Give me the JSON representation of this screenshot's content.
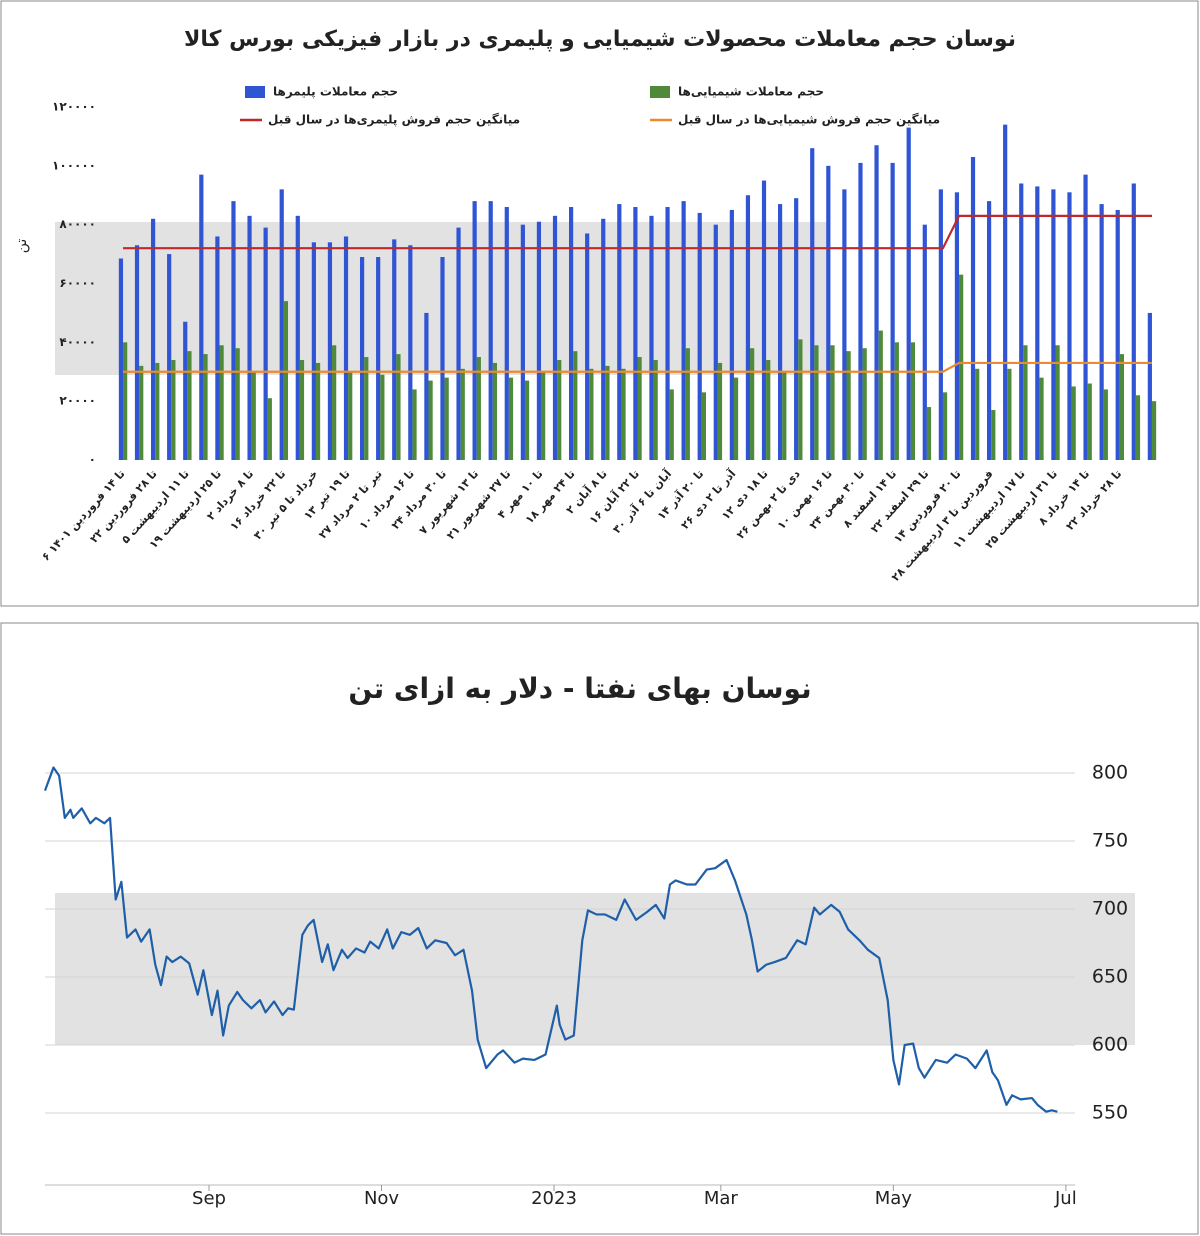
{
  "chart_data": [
    {
      "type": "bar",
      "title": "نوسان حجم معاملات محصولات شیمیایی و پلیمری در بازار فیزیکی بورس کالا",
      "y_label": "تن",
      "legend": "top",
      "grid": false,
      "categories": [
        "۶ تا ۱۴ فروردین ۱۴۰۱",
        null,
        "۲۲ تا ۲۸ فروردین",
        null,
        "۵ تا ۱۱ اردیبهشت",
        null,
        "۱۹ تا ۲۵ اردیبهشت",
        null,
        "۲ تا ۸ خرداد",
        null,
        "۱۶ تا ۲۲ خرداد",
        null,
        "۳۰ خرداد تا ۵ تیر",
        null,
        "۱۳ تا ۱۹ تیر",
        null,
        "۲۷ تیر تا ۲ مرداد",
        null,
        "۱۰ تا ۱۶ مرداد",
        null,
        "۲۴ تا ۳۰ مرداد",
        null,
        "۷ تا ۱۳ شهریور",
        null,
        "۲۱ تا ۲۷ شهریور",
        null,
        "۴ تا ۱۰ مهر",
        null,
        "۱۸ تا ۲۴ مهر",
        null,
        "۲ تا ۸ آبان",
        null,
        "۱۶ تا ۲۲ آبان",
        null,
        "۳۰ آبان تا ۶ آذر",
        null,
        "۱۴ تا ۲۰ آذر",
        null,
        "۲۶ آذر تا ۲ دی",
        null,
        "۱۲ تا ۱۸ دی",
        null,
        "۲۶ دی تا ۲ بهمن",
        null,
        "۱۰ تا ۱۶ بهمن",
        null,
        "۲۴ تا ۳۰ بهمن",
        null,
        "۸ تا ۱۴ اسفند",
        null,
        "۲۲ تا ۲۹ اسفند",
        null,
        "۱۴ تا ۲۰ فروردین",
        null,
        "۲۸ فروردین تا ۳ اردیبهشت",
        null,
        "۱۱ تا ۱۷ اردیبهشت",
        null,
        "۲۵ تا ۳۱ اردیبهشت",
        null,
        "۸ تا ۱۴ خرداد",
        null,
        "۲۲ تا ۲۸ خرداد",
        null,
        null
      ],
      "series": [
        {
          "name": "حجم معاملات پلیمرها",
          "color": "#2f55d4",
          "type": "bar",
          "values": [
            68500,
            73000,
            82000,
            70000,
            47000,
            97000,
            76000,
            88000,
            83000,
            79000,
            92000,
            83000,
            74000,
            74000,
            76000,
            69000,
            69000,
            75000,
            73000,
            50000,
            69000,
            79000,
            88000,
            88000,
            86000,
            80000,
            81000,
            83000,
            86000,
            77000,
            82000,
            87000,
            86000,
            83000,
            86000,
            88000,
            84000,
            80000,
            85000,
            90000,
            95000,
            87000,
            89000,
            106000,
            100000,
            92000,
            101000,
            107000,
            101000,
            113000,
            80000,
            92000,
            91000,
            103000,
            88000,
            114000,
            94000,
            93000,
            92000,
            91000,
            97000,
            87000,
            85000,
            94000,
            50000
          ]
        },
        {
          "name": "حجم معاملات شیمیایی‌ها",
          "color": "#4e8a3a",
          "type": "bar",
          "values": [
            40000,
            32000,
            33000,
            34000,
            37000,
            36000,
            39000,
            38000,
            30000,
            21000,
            54000,
            34000,
            33000,
            39000,
            30000,
            35000,
            29000,
            36000,
            24000,
            27000,
            28000,
            31000,
            35000,
            33000,
            28000,
            27000,
            30000,
            34000,
            37000,
            31000,
            32000,
            31000,
            35000,
            34000,
            24000,
            38000,
            23000,
            33000,
            28000,
            38000,
            34000,
            30000,
            41000,
            39000,
            39000,
            37000,
            38000,
            44000,
            40000,
            40000,
            18000,
            23000,
            63000,
            31000,
            17000,
            31000,
            39000,
            28000,
            39000,
            25000,
            26000,
            24000,
            36000,
            22000,
            20000
          ]
        },
        {
          "name": "میانگین حجم فروش پلیمری‌ها در سال قبل",
          "color": "#c0282a",
          "type": "line",
          "values": [
            72000,
            72000,
            72000,
            72000,
            72000,
            72000,
            72000,
            72000,
            72000,
            72000,
            72000,
            72000,
            72000,
            72000,
            72000,
            72000,
            72000,
            72000,
            72000,
            72000,
            72000,
            72000,
            72000,
            72000,
            72000,
            72000,
            72000,
            72000,
            72000,
            72000,
            72000,
            72000,
            72000,
            72000,
            72000,
            72000,
            72000,
            72000,
            72000,
            72000,
            72000,
            72000,
            72000,
            72000,
            72000,
            72000,
            72000,
            72000,
            72000,
            72000,
            72000,
            72000,
            83000,
            83000,
            83000,
            83000,
            83000,
            83000,
            83000,
            83000,
            83000,
            83000,
            83000,
            83000,
            83000
          ]
        },
        {
          "name": "میانگین حجم فروش شیمیایی‌ها در سال قبل",
          "color": "#ec8a2e",
          "type": "line",
          "values": [
            30000,
            30000,
            30000,
            30000,
            30000,
            30000,
            30000,
            30000,
            30000,
            30000,
            30000,
            30000,
            30000,
            30000,
            30000,
            30000,
            30000,
            30000,
            30000,
            30000,
            30000,
            30000,
            30000,
            30000,
            30000,
            30000,
            30000,
            30000,
            30000,
            30000,
            30000,
            30000,
            30000,
            30000,
            30000,
            30000,
            30000,
            30000,
            30000,
            30000,
            30000,
            30000,
            30000,
            30000,
            30000,
            30000,
            30000,
            30000,
            30000,
            30000,
            30000,
            30000,
            33000,
            33000,
            33000,
            33000,
            33000,
            33000,
            33000,
            33000,
            33000,
            33000,
            33000,
            33000,
            33000
          ]
        }
      ],
      "ylim": [
        0,
        120000
      ],
      "yticks": [
        {
          "value": 0,
          "label": "۰"
        },
        {
          "value": 20000,
          "label": "۲۰۰۰۰"
        },
        {
          "value": 40000,
          "label": "۴۰۰۰۰"
        },
        {
          "value": 60000,
          "label": "۶۰۰۰۰"
        },
        {
          "value": 80000,
          "label": "۸۰۰۰۰"
        },
        {
          "value": 100000,
          "label": "۱۰۰۰۰۰"
        },
        {
          "value": 120000,
          "label": "۱۲۰۰۰۰"
        }
      ]
    },
    {
      "type": "line",
      "title": "نوسان بهای نفتا - دلار به ازای تن",
      "color": "#1f5fa8",
      "grid": true,
      "x": [
        "2022-07-05",
        "2022-07-08",
        "2022-07-10",
        "2022-07-12",
        "2022-07-14",
        "2022-07-15",
        "2022-07-18",
        "2022-07-21",
        "2022-07-23",
        "2022-07-26",
        "2022-07-28",
        "2022-07-30",
        "2022-08-01",
        "2022-08-03",
        "2022-08-06",
        "2022-08-08",
        "2022-08-11",
        "2022-08-13",
        "2022-08-15",
        "2022-08-17",
        "2022-08-19",
        "2022-08-22",
        "2022-08-25",
        "2022-08-28",
        "2022-08-30",
        "2022-09-02",
        "2022-09-04",
        "2022-09-06",
        "2022-09-08",
        "2022-09-11",
        "2022-09-13",
        "2022-09-16",
        "2022-09-19",
        "2022-09-21",
        "2022-09-24",
        "2022-09-27",
        "2022-09-29",
        "2022-10-01",
        "2022-10-04",
        "2022-10-06",
        "2022-10-08",
        "2022-10-11",
        "2022-10-13",
        "2022-10-15",
        "2022-10-18",
        "2022-10-20",
        "2022-10-23",
        "2022-10-26",
        "2022-10-28",
        "2022-10-31",
        "2022-11-03",
        "2022-11-05",
        "2022-11-08",
        "2022-11-11",
        "2022-11-14",
        "2022-11-17",
        "2022-11-20",
        "2022-11-24",
        "2022-11-27",
        "2022-11-30",
        "2022-12-03",
        "2022-12-05",
        "2022-12-08",
        "2022-12-12",
        "2022-12-14",
        "2022-12-18",
        "2022-12-21",
        "2022-12-25",
        "2022-12-29",
        "2023-01-02",
        "2023-01-03",
        "2023-01-05",
        "2023-01-08",
        "2023-01-11",
        "2023-01-13",
        "2023-01-16",
        "2023-01-19",
        "2023-01-23",
        "2023-01-26",
        "2023-01-30",
        "2023-02-03",
        "2023-02-06",
        "2023-02-09",
        "2023-02-11",
        "2023-02-13",
        "2023-02-17",
        "2023-02-20",
        "2023-02-24",
        "2023-02-27",
        "2023-03-03",
        "2023-03-06",
        "2023-03-10",
        "2023-03-12",
        "2023-03-14",
        "2023-03-17",
        "2023-03-20",
        "2023-03-24",
        "2023-03-28",
        "2023-03-31",
        "2023-04-03",
        "2023-04-05",
        "2023-04-09",
        "2023-04-12",
        "2023-04-15",
        "2023-04-19",
        "2023-04-22",
        "2023-04-26",
        "2023-04-29",
        "2023-05-01",
        "2023-05-03",
        "2023-05-05",
        "2023-05-08",
        "2023-05-10",
        "2023-05-12",
        "2023-05-16",
        "2023-05-20",
        "2023-05-23",
        "2023-05-27",
        "2023-05-30",
        "2023-06-03",
        "2023-06-05",
        "2023-06-07",
        "2023-06-10",
        "2023-06-12",
        "2023-06-15",
        "2023-06-19",
        "2023-06-21",
        "2023-06-24",
        "2023-06-26",
        "2023-06-28"
      ],
      "values": [
        787,
        804,
        798,
        767,
        773,
        767,
        774,
        763,
        767,
        763,
        767,
        707,
        720,
        679,
        685,
        676,
        685,
        659,
        644,
        665,
        661,
        665,
        660,
        637,
        655,
        622,
        640,
        607,
        629,
        639,
        633,
        627,
        633,
        624,
        632,
        622,
        627,
        626,
        681,
        688,
        692,
        661,
        674,
        655,
        670,
        664,
        671,
        668,
        676,
        671,
        685,
        671,
        683,
        681,
        686,
        671,
        677,
        675,
        666,
        670,
        640,
        604,
        583,
        593,
        596,
        587,
        590,
        589,
        593,
        629,
        615,
        604,
        607,
        677,
        699,
        696,
        696,
        692,
        707,
        692,
        698,
        703,
        693,
        718,
        721,
        718,
        718,
        729,
        730,
        736,
        721,
        696,
        677,
        654,
        659,
        661,
        664,
        677,
        674,
        701,
        696,
        703,
        698,
        685,
        677,
        670,
        664,
        633,
        589,
        571,
        600,
        601,
        583,
        576,
        589,
        587,
        593,
        590,
        583,
        596,
        580,
        574,
        556,
        563,
        560,
        561,
        556,
        551,
        552,
        551
      ],
      "xlim": [
        "2022-07-05",
        "2023-07-06"
      ],
      "xticks": [
        {
          "value": "2022-09-01",
          "label": "Sep"
        },
        {
          "value": "2022-11-01",
          "label": "Nov"
        },
        {
          "value": "2023-01-01",
          "label": "2023"
        },
        {
          "value": "2023-03-01",
          "label": "Mar"
        },
        {
          "value": "2023-05-01",
          "label": "May"
        },
        {
          "value": "2023-07-01",
          "label": "Jul"
        }
      ],
      "ylim": [
        500,
        850
      ],
      "yticks": [
        550,
        600,
        650,
        700,
        750,
        800
      ]
    }
  ]
}
